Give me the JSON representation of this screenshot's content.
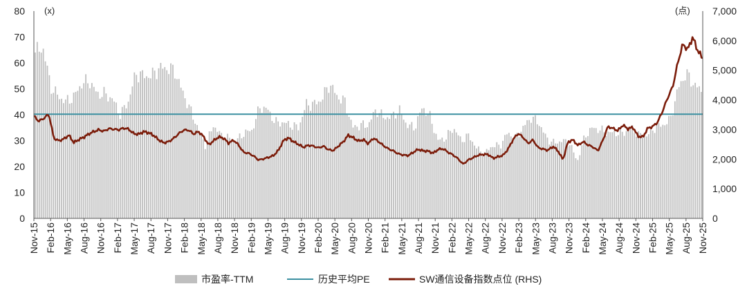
{
  "chart_data": {
    "type": "bar+line",
    "left_axis_unit": "(x)",
    "right_axis_unit": "(点)",
    "y_left": {
      "min": 0,
      "max": 80,
      "ticks": [
        "0",
        "10",
        "20",
        "30",
        "40",
        "50",
        "60",
        "70",
        "80"
      ]
    },
    "y_right": {
      "min": 0,
      "max": 7000,
      "ticks": [
        "0",
        "1,000",
        "2,000",
        "3,000",
        "4,000",
        "5,000",
        "6,000",
        "7,000"
      ]
    },
    "x_labels": [
      "Nov-15",
      "Feb-16",
      "May-16",
      "Aug-16",
      "Nov-16",
      "Feb-17",
      "May-17",
      "Aug-17",
      "Nov-17",
      "Feb-18",
      "May-18",
      "Aug-18",
      "Nov-18",
      "Feb-19",
      "May-19",
      "Aug-19",
      "Nov-19",
      "Feb-20",
      "May-20",
      "Aug-20",
      "Nov-20",
      "Feb-21",
      "May-21",
      "Aug-21",
      "Nov-21",
      "Feb-22",
      "May-22",
      "Aug-22",
      "Nov-22",
      "Feb-23",
      "May-23",
      "Aug-23",
      "Nov-23",
      "Feb-24",
      "May-24",
      "Aug-24",
      "Nov-24",
      "Feb-25",
      "May-25",
      "Aug-25",
      "Nov-25"
    ],
    "series": [
      {
        "name": "市盈率-TTM",
        "kind": "bar",
        "axis": "left",
        "color": "#bfbfbf",
        "values": [
          64,
          66,
          51,
          47,
          45,
          47,
          52,
          53,
          48,
          48,
          46,
          40,
          45,
          56,
          55,
          55,
          58,
          58,
          57,
          49,
          42,
          35,
          28,
          36,
          32,
          31,
          30,
          33,
          34,
          43,
          42,
          37,
          37,
          36,
          35,
          44,
          44,
          46,
          52,
          47,
          45,
          35,
          36,
          36,
          42,
          39,
          39,
          42,
          36,
          35,
          43,
          39,
          30,
          31,
          35,
          30,
          32,
          27,
          25,
          28,
          28,
          33,
          31,
          35,
          39,
          37,
          31,
          29,
          30,
          29,
          22,
          32,
          35,
          34,
          33,
          33,
          33,
          35,
          32,
          32,
          35,
          36,
          38,
          50,
          56,
          52,
          49
        ]
      },
      {
        "name": "历史平均PE",
        "kind": "line",
        "axis": "left",
        "color": "#3a8fa0",
        "value": 40.2
      },
      {
        "name": "SW通信设备指数点位 (RHS)",
        "kind": "line",
        "axis": "right",
        "color": "#7b1c0a",
        "values": [
          3450,
          3280,
          3380,
          3520,
          2700,
          2620,
          2680,
          2810,
          2560,
          2660,
          2740,
          2850,
          2930,
          2990,
          2940,
          3030,
          3010,
          2990,
          3050,
          3010,
          2860,
          2840,
          2930,
          2890,
          2800,
          2650,
          2550,
          2590,
          2700,
          2860,
          2980,
          2980,
          2850,
          2930,
          2760,
          2480,
          2620,
          2750,
          2710,
          2540,
          2640,
          2480,
          2230,
          2200,
          2110,
          1970,
          2010,
          2060,
          2120,
          2300,
          2630,
          2720,
          2590,
          2500,
          2400,
          2470,
          2440,
          2380,
          2440,
          2320,
          2290,
          2440,
          2590,
          2810,
          2720,
          2610,
          2660,
          2520,
          2710,
          2600,
          2460,
          2350,
          2280,
          2180,
          2140,
          2120,
          2230,
          2330,
          2280,
          2270,
          2200,
          2330,
          2350,
          2230,
          2140,
          2010,
          1830,
          1970,
          2050,
          2130,
          2160,
          2160,
          2030,
          2080,
          2130,
          2340,
          2660,
          2870,
          2740,
          2530,
          2650,
          2390,
          2340,
          2300,
          2430,
          2280,
          1980,
          2580,
          2650,
          2460,
          2590,
          2480,
          2410,
          2280,
          2640,
          3100,
          3040,
          2960,
          3150,
          3020,
          3080,
          2780,
          2740,
          3050,
          3100,
          3260,
          3640,
          4080,
          4450,
          5250,
          5880,
          5700,
          6120,
          5660,
          5410
        ]
      }
    ],
    "legend": {
      "position": "bottom",
      "items": [
        "市盈率-TTM",
        "历史平均PE",
        "SW通信设备指数点位 (RHS)"
      ]
    }
  }
}
